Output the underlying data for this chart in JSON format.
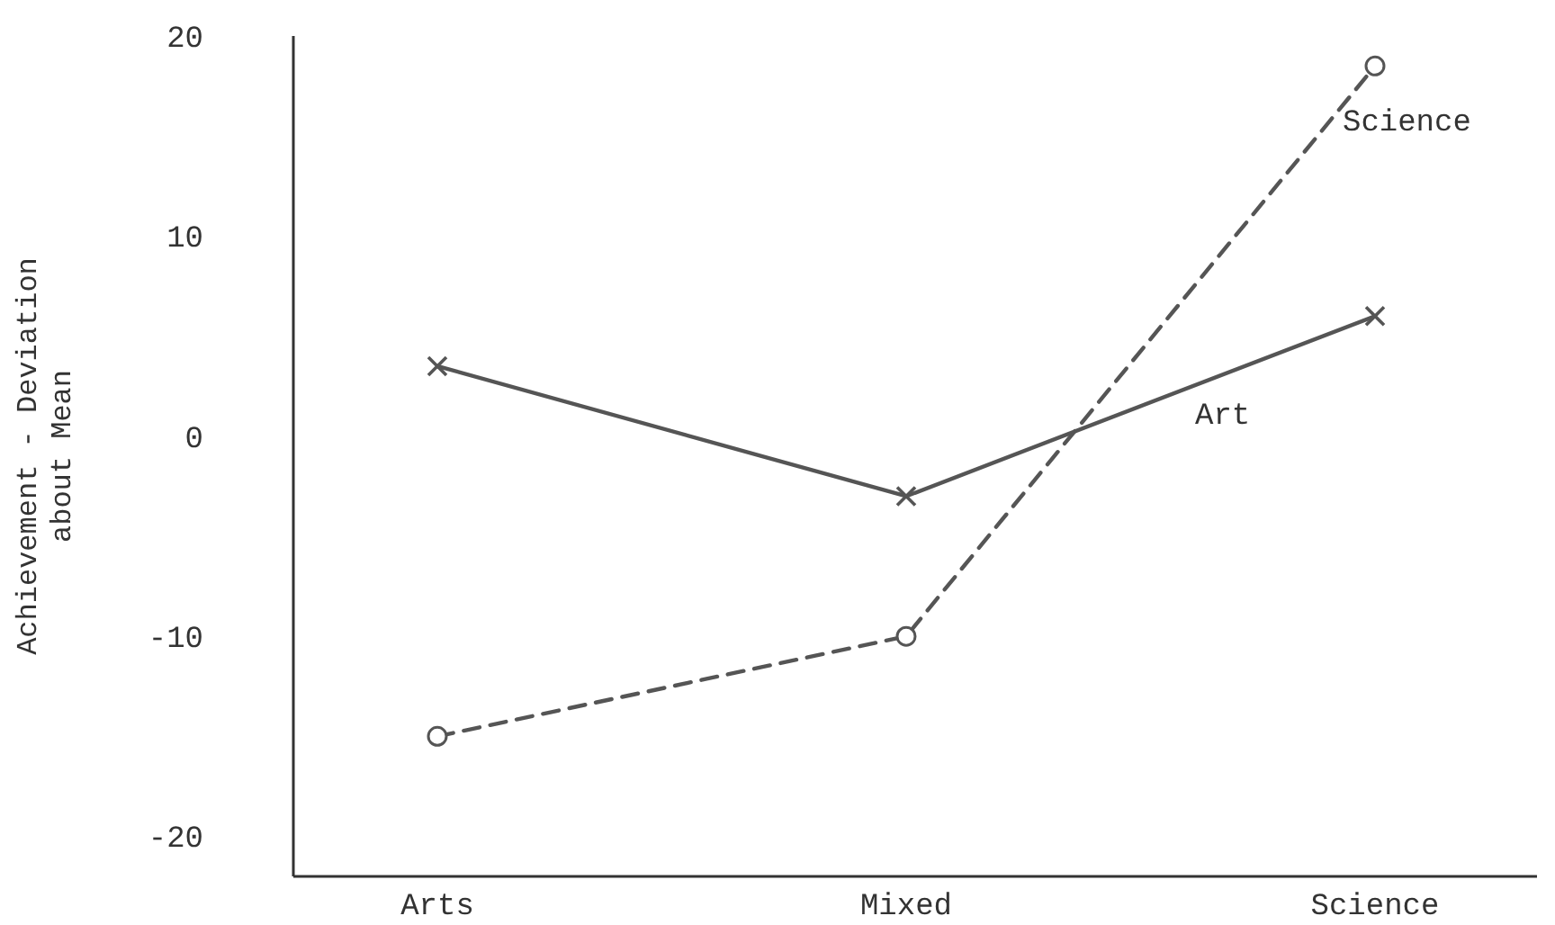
{
  "chart_data": {
    "type": "line",
    "ylabel": "Achievement - Deviation\nabout Mean",
    "categories": [
      "Arts",
      "Mixed",
      "Science"
    ],
    "series": [
      {
        "name": "Art",
        "color": "#555555",
        "values": [
          3.5,
          -3,
          6
        ],
        "marker": "cross",
        "line_style": "solid"
      },
      {
        "name": "Science",
        "color": "#555555",
        "values": [
          -15,
          -10,
          18.5
        ],
        "marker": "circle",
        "line_style": "dashed"
      }
    ],
    "ylim": [
      -22,
      20
    ],
    "yticks": [
      -20,
      -10,
      0,
      10,
      20
    ]
  }
}
